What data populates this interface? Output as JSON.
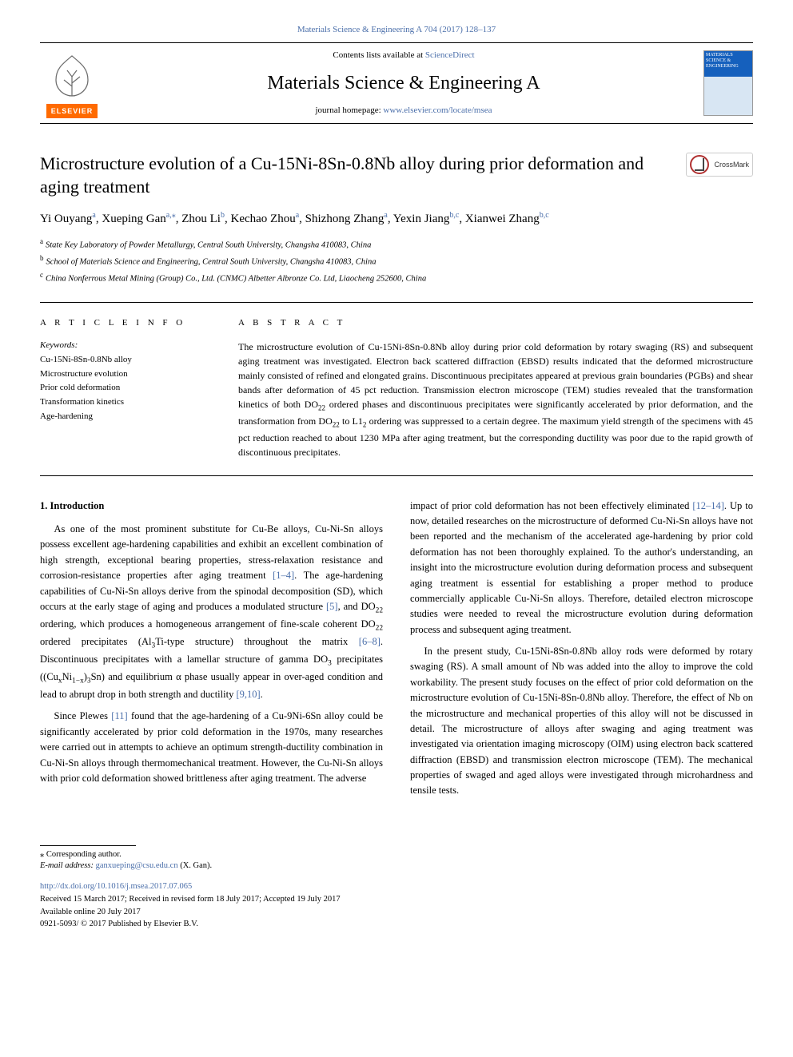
{
  "top_citation": "Materials Science & Engineering A 704 (2017) 128–137",
  "header": {
    "contents_prefix": "Contents lists available at ",
    "contents_link": "ScienceDirect",
    "journal_title": "Materials Science & Engineering A",
    "homepage_prefix": "journal homepage: ",
    "homepage_link": "www.elsevier.com/locate/msea",
    "elsevier_word": "ELSEVIER",
    "cover_text": "MATERIALS SCIENCE & ENGINEERING"
  },
  "crossmark_label": "CrossMark",
  "article_title": "Microstructure evolution of a Cu-15Ni-8Sn-0.8Nb alloy during prior deformation and aging treatment",
  "authors_html": "Yi Ouyang<sup>a</sup>, Xueping Gan<sup>a,<span class='ast'>⁎</span></sup>, Zhou Li<sup>b</sup>, Kechao Zhou<sup>a</sup>, Shizhong Zhang<sup>a</sup>, Yexin Jiang<sup>b,c</sup>, Xianwei Zhang<sup>b,c</sup>",
  "affiliations": [
    {
      "mark": "a",
      "text": "State Key Laboratory of Powder Metallurgy, Central South University, Changsha 410083, China"
    },
    {
      "mark": "b",
      "text": "School of Materials Science and Engineering, Central South University, Changsha 410083, China"
    },
    {
      "mark": "c",
      "text": "China Nonferrous Metal Mining (Group) Co., Ltd. (CNMC) Albetter Albronze Co. Ltd, Liaocheng 252600, China"
    }
  ],
  "section_headings": {
    "article_info": "A R T I C L E  I N F O",
    "abstract": "A B S T R A C T"
  },
  "keywords_label": "Keywords:",
  "keywords": [
    "Cu-15Ni-8Sn-0.8Nb alloy",
    "Microstructure evolution",
    "Prior cold deformation",
    "Transformation kinetics",
    "Age-hardening"
  ],
  "abstract_html": "The microstructure evolution of Cu-15Ni-8Sn-0.8Nb alloy during prior cold deformation by rotary swaging (RS) and subsequent aging treatment was investigated. Electron back scattered diffraction (EBSD) results indicated that the deformed microstructure mainly consisted of refined and elongated grains. Discontinuous precipitates appeared at previous grain boundaries (PGBs) and shear bands after deformation of 45 pct reduction. Transmission electron microscope (TEM) studies revealed that the transformation kinetics of both DO<sub>22</sub> ordered phases and discontinuous precipitates were significantly accelerated by prior deformation, and the transformation from DO<sub>22</sub> to L1<sub>2</sub> ordering was suppressed to a certain degree. The maximum yield strength of the specimens with 45 pct reduction reached to about 1230 MPa after aging treatment, but the corresponding ductility was poor due to the rapid growth of discontinuous precipitates.",
  "intro_heading": "1. Introduction",
  "intro_paras_left": [
    "As one of the most prominent substitute for Cu-Be alloys, Cu-Ni-Sn alloys possess excellent age-hardening capabilities and exhibit an excellent combination of high strength, exceptional bearing properties, stress-relaxation resistance and corrosion-resistance properties after aging treatment <a class='ref' href='#'>[1–4]</a>. The age-hardening capabilities of Cu-Ni-Sn alloys derive from the spinodal decomposition (SD), which occurs at the early stage of aging and produces a modulated structure <a class='ref' href='#'>[5]</a>, and DO<sub>22</sub> ordering, which produces a homogeneous arrangement of fine-scale coherent DO<sub>22</sub> ordered precipitates (Al<sub>3</sub>Ti-type structure) throughout the matrix <a class='ref' href='#'>[6–8]</a>. Discontinuous precipitates with a lamellar structure of gamma DO<sub>3</sub> precipitates ((Cu<sub>x</sub>Ni<sub>1−x</sub>)<sub>3</sub>Sn) and equilibrium α phase usually appear in over-aged condition and lead to abrupt drop in both strength and ductility <a class='ref' href='#'>[9,10]</a>.",
    "Since Plewes <a class='ref' href='#'>[11]</a> found that the age-hardening of a Cu-9Ni-6Sn alloy could be significantly accelerated by prior cold deformation in the 1970s, many researches were carried out in attempts to achieve an optimum strength-ductility combination in Cu-Ni-Sn alloys through thermomechanical treatment. However, the Cu-Ni-Sn alloys with prior cold deformation showed brittleness after aging treatment. The adverse"
  ],
  "intro_paras_right": [
    "impact of prior cold deformation has not been effectively eliminated <a class='ref' href='#'>[12–14]</a>. Up to now, detailed researches on the microstructure of deformed Cu-Ni-Sn alloys have not been reported and the mechanism of the accelerated age-hardening by prior cold deformation has not been thoroughly explained. To the author's understanding, an insight into the microstructure evolution during deformation process and subsequent aging treatment is essential for establishing a proper method to produce commercially applicable Cu-Ni-Sn alloys. Therefore, detailed electron microscope studies were needed to reveal the microstructure evolution during deformation process and subsequent aging treatment.",
    "In the present study, Cu-15Ni-8Sn-0.8Nb alloy rods were deformed by rotary swaging (RS). A small amount of Nb was added into the alloy to improve the cold workability. The present study focuses on the effect of prior cold deformation on the microstructure evolution of Cu-15Ni-8Sn-0.8Nb alloy. Therefore, the effect of Nb on the microstructure and mechanical properties of this alloy will not be discussed in detail. The microstructure of alloys after swaging and aging treatment was investigated via orientation imaging microscopy (OIM) using electron back scattered diffraction (EBSD) and transmission electron microscope (TEM). The mechanical properties of swaged and aged alloys were investigated through microhardness and tensile tests."
  ],
  "footnotes": {
    "corr_label": "⁎ Corresponding author.",
    "email_label": "E-mail address: ",
    "email": "ganxueping@csu.edu.cn",
    "email_suffix": " (X. Gan)."
  },
  "doi_block": {
    "doi": "http://dx.doi.org/10.1016/j.msea.2017.07.065",
    "history": "Received 15 March 2017; Received in revised form 18 July 2017; Accepted 19 July 2017",
    "available": "Available online 20 July 2017",
    "copyright": "0921-5093/ © 2017 Published by Elsevier B.V."
  },
  "colors": {
    "link": "#4b6faa",
    "elsevier_orange": "#ff6a00",
    "cover_blue": "#1560bd",
    "text": "#000000"
  }
}
